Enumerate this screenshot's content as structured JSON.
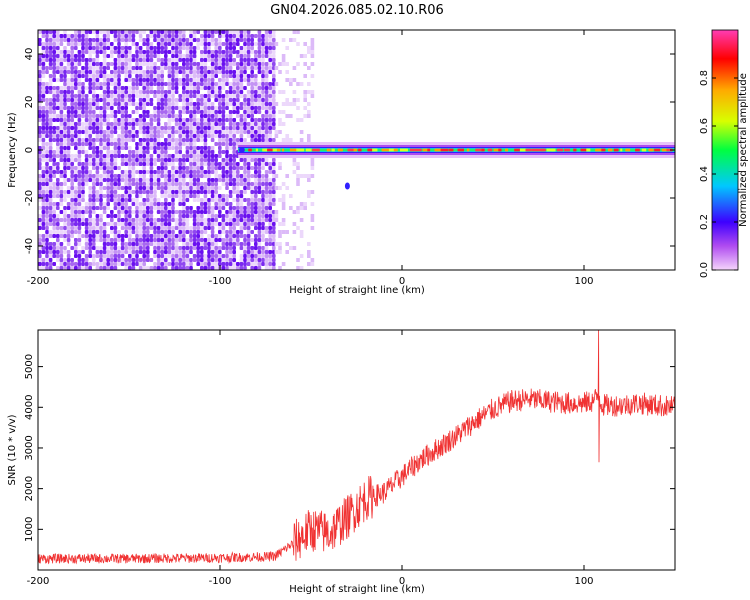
{
  "title": "GN04.2026.085.02.10.R06",
  "chart_data": [
    {
      "type": "heatmap",
      "xlabel": "Height of straight line (km)",
      "ylabel": "Frequency (Hz)",
      "xlim": [
        -200,
        150
      ],
      "ylim": [
        -50,
        50
      ],
      "xticks": [
        -200,
        -100,
        0,
        100
      ],
      "yticks": [
        -40,
        -20,
        0,
        20,
        40
      ],
      "colorbar": {
        "label": "Normalized spectral amplitude",
        "range": [
          0.0,
          1.0
        ],
        "ticks": [
          "0.0",
          "0.2",
          "0.4",
          "0.6",
          "0.8"
        ]
      },
      "features": {
        "noise_region_x": [
          -200,
          -70
        ],
        "sparse_region_x": [
          -70,
          -50
        ],
        "signal_line_frequency_hz": 0,
        "signal_start_x": -90
      }
    },
    {
      "type": "line",
      "xlabel": "Height of straight line (km)",
      "ylabel": "SNR (10 * v/v)",
      "xlim": [
        -200,
        150
      ],
      "ylim": [
        0,
        5900
      ],
      "xticks": [
        -200,
        -100,
        0,
        100
      ],
      "yticks": [
        1000,
        2000,
        3000,
        4000,
        5000
      ],
      "color": "#f03232",
      "series": [
        {
          "name": "SNR",
          "x": [
            -200,
            -150,
            -100,
            -70,
            -60,
            -50,
            -40,
            -30,
            -20,
            -10,
            0,
            10,
            20,
            30,
            40,
            50,
            60,
            70,
            80,
            90,
            100,
            105,
            108,
            110,
            120,
            130,
            140,
            150
          ],
          "values": [
            280,
            280,
            300,
            330,
            650,
            1000,
            900,
            1300,
            1750,
            1900,
            2300,
            2700,
            3000,
            3300,
            3650,
            3950,
            4150,
            4200,
            4150,
            4100,
            4100,
            4150,
            4300,
            4050,
            4050,
            4100,
            4050,
            4000
          ]
        }
      ],
      "spikes": [
        {
          "x": 108,
          "max": 5900,
          "min": 2650
        }
      ]
    }
  ]
}
